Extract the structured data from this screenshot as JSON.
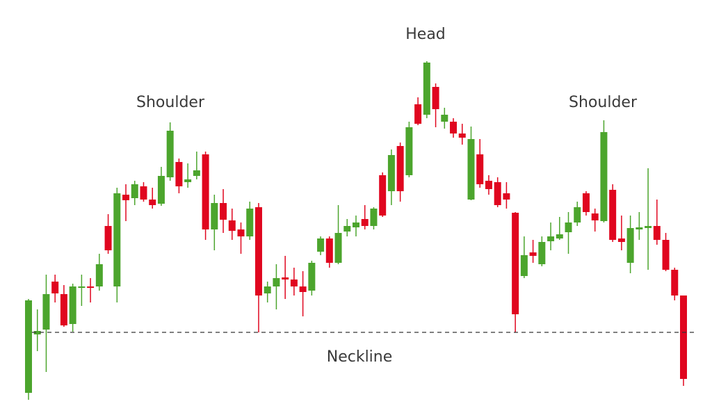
{
  "chart_data": {
    "type": "candlestick",
    "annotations": [
      "Shoulder",
      "Head",
      "Shoulder"
    ],
    "neckline": {
      "label": "Neckline",
      "value": 116
    },
    "up_color": "#4ca52d",
    "down_color": "#e0061f",
    "ylim": [
      0,
      594
    ],
    "open": [
      29,
      113,
      120,
      189,
      171,
      128,
      180,
      182,
      182,
      269,
      182,
      314,
      309,
      326,
      307,
      301,
      339,
      361,
      332,
      341,
      372,
      264,
      302,
      277,
      264,
      254,
      296,
      172,
      182,
      195,
      192,
      182,
      176,
      232,
      251,
      216,
      261,
      267,
      279,
      269,
      342,
      319,
      384,
      342,
      444,
      429,
      469,
      419,
      419,
      402,
      307,
      372,
      334,
      332,
      316,
      288,
      197,
      231,
      214,
      247,
      251,
      260,
      274,
      316,
      287,
      276,
      321,
      251,
      216,
      264,
      266,
      269,
      249,
      206,
      169
    ],
    "high": [
      164,
      149,
      199,
      199,
      184,
      186,
      199,
      194,
      229,
      286,
      324,
      329,
      334,
      332,
      324,
      354,
      418,
      366,
      359,
      376,
      376,
      314,
      322,
      294,
      274,
      304,
      302,
      189,
      214,
      226,
      209,
      204,
      219,
      254,
      254,
      299,
      279,
      284,
      299,
      296,
      346,
      379,
      389,
      419,
      454,
      506,
      474,
      439,
      424,
      416,
      412,
      394,
      342,
      339,
      332,
      289,
      254,
      249,
      254,
      274,
      282,
      289,
      304,
      319,
      294,
      421,
      329,
      284,
      284,
      289,
      352,
      307,
      259,
      209,
      169
    ],
    "low": [
      19,
      89,
      59,
      159,
      124,
      117,
      154,
      159,
      176,
      229,
      159,
      276,
      299,
      304,
      294,
      298,
      334,
      316,
      324,
      336,
      249,
      234,
      259,
      249,
      229,
      249,
      116,
      159,
      149,
      164,
      169,
      139,
      169,
      227,
      209,
      214,
      254,
      254,
      264,
      264,
      282,
      299,
      304,
      339,
      414,
      424,
      411,
      409,
      396,
      386,
      306,
      324,
      314,
      296,
      294,
      116,
      194,
      216,
      211,
      234,
      249,
      229,
      269,
      284,
      261,
      274,
      246,
      234,
      201,
      249,
      206,
      242,
      204,
      162,
      39
    ],
    "close": [
      162,
      118,
      171,
      172,
      126,
      182,
      182,
      180,
      214,
      234,
      316,
      306,
      329,
      307,
      299,
      341,
      406,
      326,
      336,
      349,
      264,
      302,
      278,
      262,
      254,
      294,
      169,
      182,
      194,
      192,
      182,
      174,
      216,
      251,
      216,
      259,
      269,
      274,
      269,
      294,
      284,
      371,
      319,
      411,
      416,
      504,
      437,
      429,
      402,
      396,
      394,
      329,
      322,
      299,
      307,
      142,
      227,
      226,
      246,
      254,
      257,
      274,
      296,
      289,
      277,
      404,
      249,
      246,
      266,
      267,
      269,
      249,
      206,
      169,
      49
    ]
  }
}
